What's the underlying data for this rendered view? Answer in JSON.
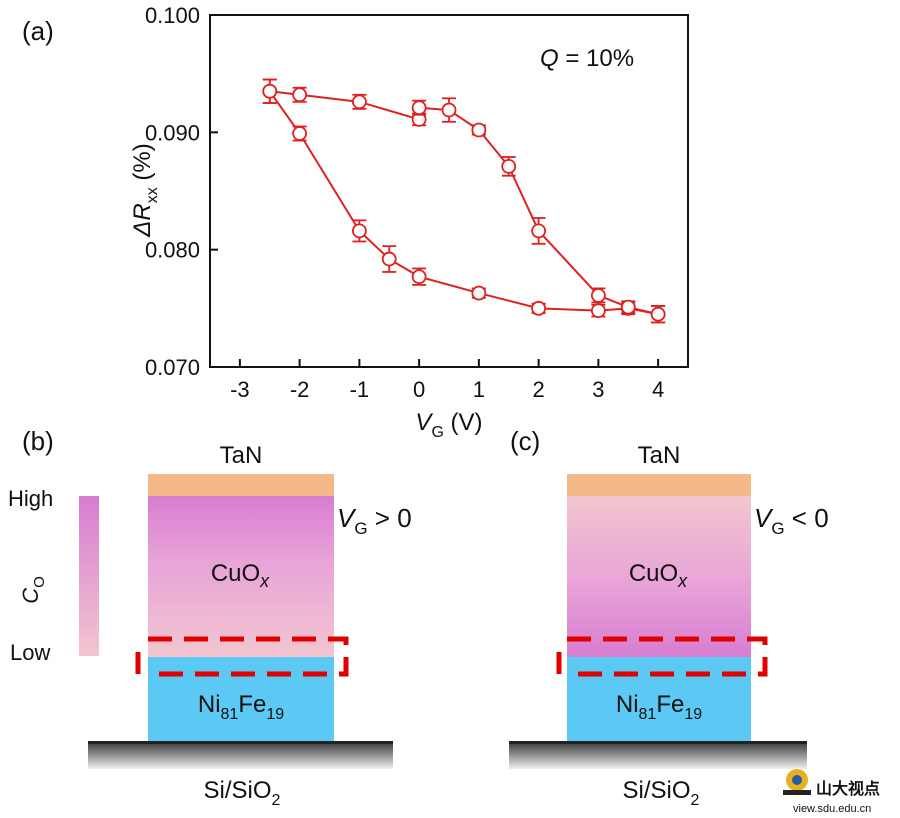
{
  "chart_data": {
    "type": "scatter",
    "panel_label": "(a)",
    "annotation": "Q = 10%",
    "annotation_var": "Q",
    "annotation_rest": " = 10%",
    "xlabel_var": "V",
    "xlabel_sub": "G",
    "xlabel_unit": " (V)",
    "ylabel_var": "ΔR",
    "ylabel_sub": "xx",
    "ylabel_unit": " (%)",
    "xlim": [
      -3.5,
      4.5
    ],
    "ylim": [
      0.07,
      0.1
    ],
    "x_ticks": [
      -3,
      -2,
      -1,
      0,
      1,
      2,
      3,
      4
    ],
    "x_tick_labels": [
      "-3",
      "-2",
      "-1",
      "0",
      "1",
      "2",
      "3",
      "4"
    ],
    "y_ticks": [
      0.07,
      0.08,
      0.09,
      0.1
    ],
    "y_tick_labels": [
      "0.070",
      "0.080",
      "0.090",
      "0.100"
    ],
    "color": "#e02020",
    "series": [
      {
        "x": [
          -2.5,
          -2,
          -1,
          -0.5,
          0,
          1,
          2,
          3,
          3.5,
          4
        ],
        "y": [
          0.0935,
          0.0899,
          0.0816,
          0.0792,
          0.0777,
          0.0763,
          0.075,
          0.0748,
          0.075,
          0.0745
        ],
        "err": [
          0.001,
          0.0006,
          0.0009,
          0.0011,
          0.0007,
          0.0004,
          0.0004,
          0.0005,
          0.0005,
          0.0007
        ]
      },
      {
        "x": [
          -2.5,
          -2,
          -1,
          0,
          0,
          0.5,
          1,
          1.5,
          2,
          3,
          3.5,
          4
        ],
        "y": [
          0.0935,
          0.0932,
          0.0926,
          0.0911,
          0.0921,
          0.0919,
          0.0902,
          0.0871,
          0.0816,
          0.0761,
          0.0751,
          0.0745
        ],
        "err": [
          0.001,
          0.0006,
          0.0006,
          0.0005,
          0.0006,
          0.001,
          0.0004,
          0.0008,
          0.0011,
          0.0006,
          0.0005,
          0.0007
        ]
      }
    ]
  },
  "diagram_b": {
    "panel_label": "(b)",
    "top_layer": "TaN",
    "middle_layer": "CuO",
    "middle_layer_sub": "x",
    "bottom_layer": "Ni",
    "bottom_layer_sub1": "81",
    "bottom_layer_mid": "Fe",
    "bottom_layer_sub2": "19",
    "substrate": "Si/SiO",
    "substrate_sub": "2",
    "bias_var": "V",
    "bias_sub": "G",
    "bias_cond": " > 0",
    "scale_high": "High",
    "scale_low": "Low",
    "scale_title": "C",
    "scale_title_sub": "O"
  },
  "diagram_c": {
    "panel_label": "(c)",
    "top_layer": "TaN",
    "middle_layer": "CuO",
    "middle_layer_sub": "x",
    "bottom_layer": "Ni",
    "bottom_layer_sub1": "81",
    "bottom_layer_mid": "Fe",
    "bottom_layer_sub2": "19",
    "substrate": "Si/SiO",
    "substrate_sub": "2",
    "bias_var": "V",
    "bias_sub": "G",
    "bias_cond": " < 0"
  },
  "watermark": {
    "text": "山大视点",
    "url": "view.sdu.edu.cn"
  },
  "colors": {
    "tan": "#f5b888",
    "nife": "#5cc9f5",
    "cuox_high": "#d77dd0",
    "cuox_low": "#f2c6cf",
    "marker": "#e02020",
    "dashed_box": "#e00000"
  }
}
